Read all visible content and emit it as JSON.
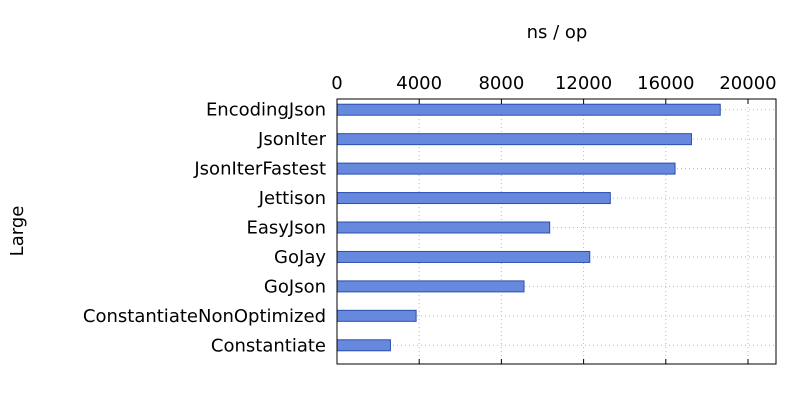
{
  "chart_data": {
    "type": "bar",
    "orientation": "horizontal",
    "title": "",
    "xlabel": "ns / op",
    "ylabel": "Large",
    "xlim": [
      0,
      20000
    ],
    "xticks": [
      0,
      4000,
      8000,
      12000,
      16000,
      20000
    ],
    "x_axis_position": "top",
    "grid": true,
    "bar_color": "#6688dd",
    "bar_edge_color": "#2a4fb0",
    "categories": [
      "EncodingJson",
      "JsonIter",
      "JsonIterFastest",
      "Jettison",
      "EasyJson",
      "GoJay",
      "GoJson",
      "ConstantiateNonOptimized",
      "Constantiate"
    ],
    "values": [
      18650,
      17250,
      16450,
      13300,
      10350,
      12300,
      9100,
      3850,
      2600
    ]
  }
}
